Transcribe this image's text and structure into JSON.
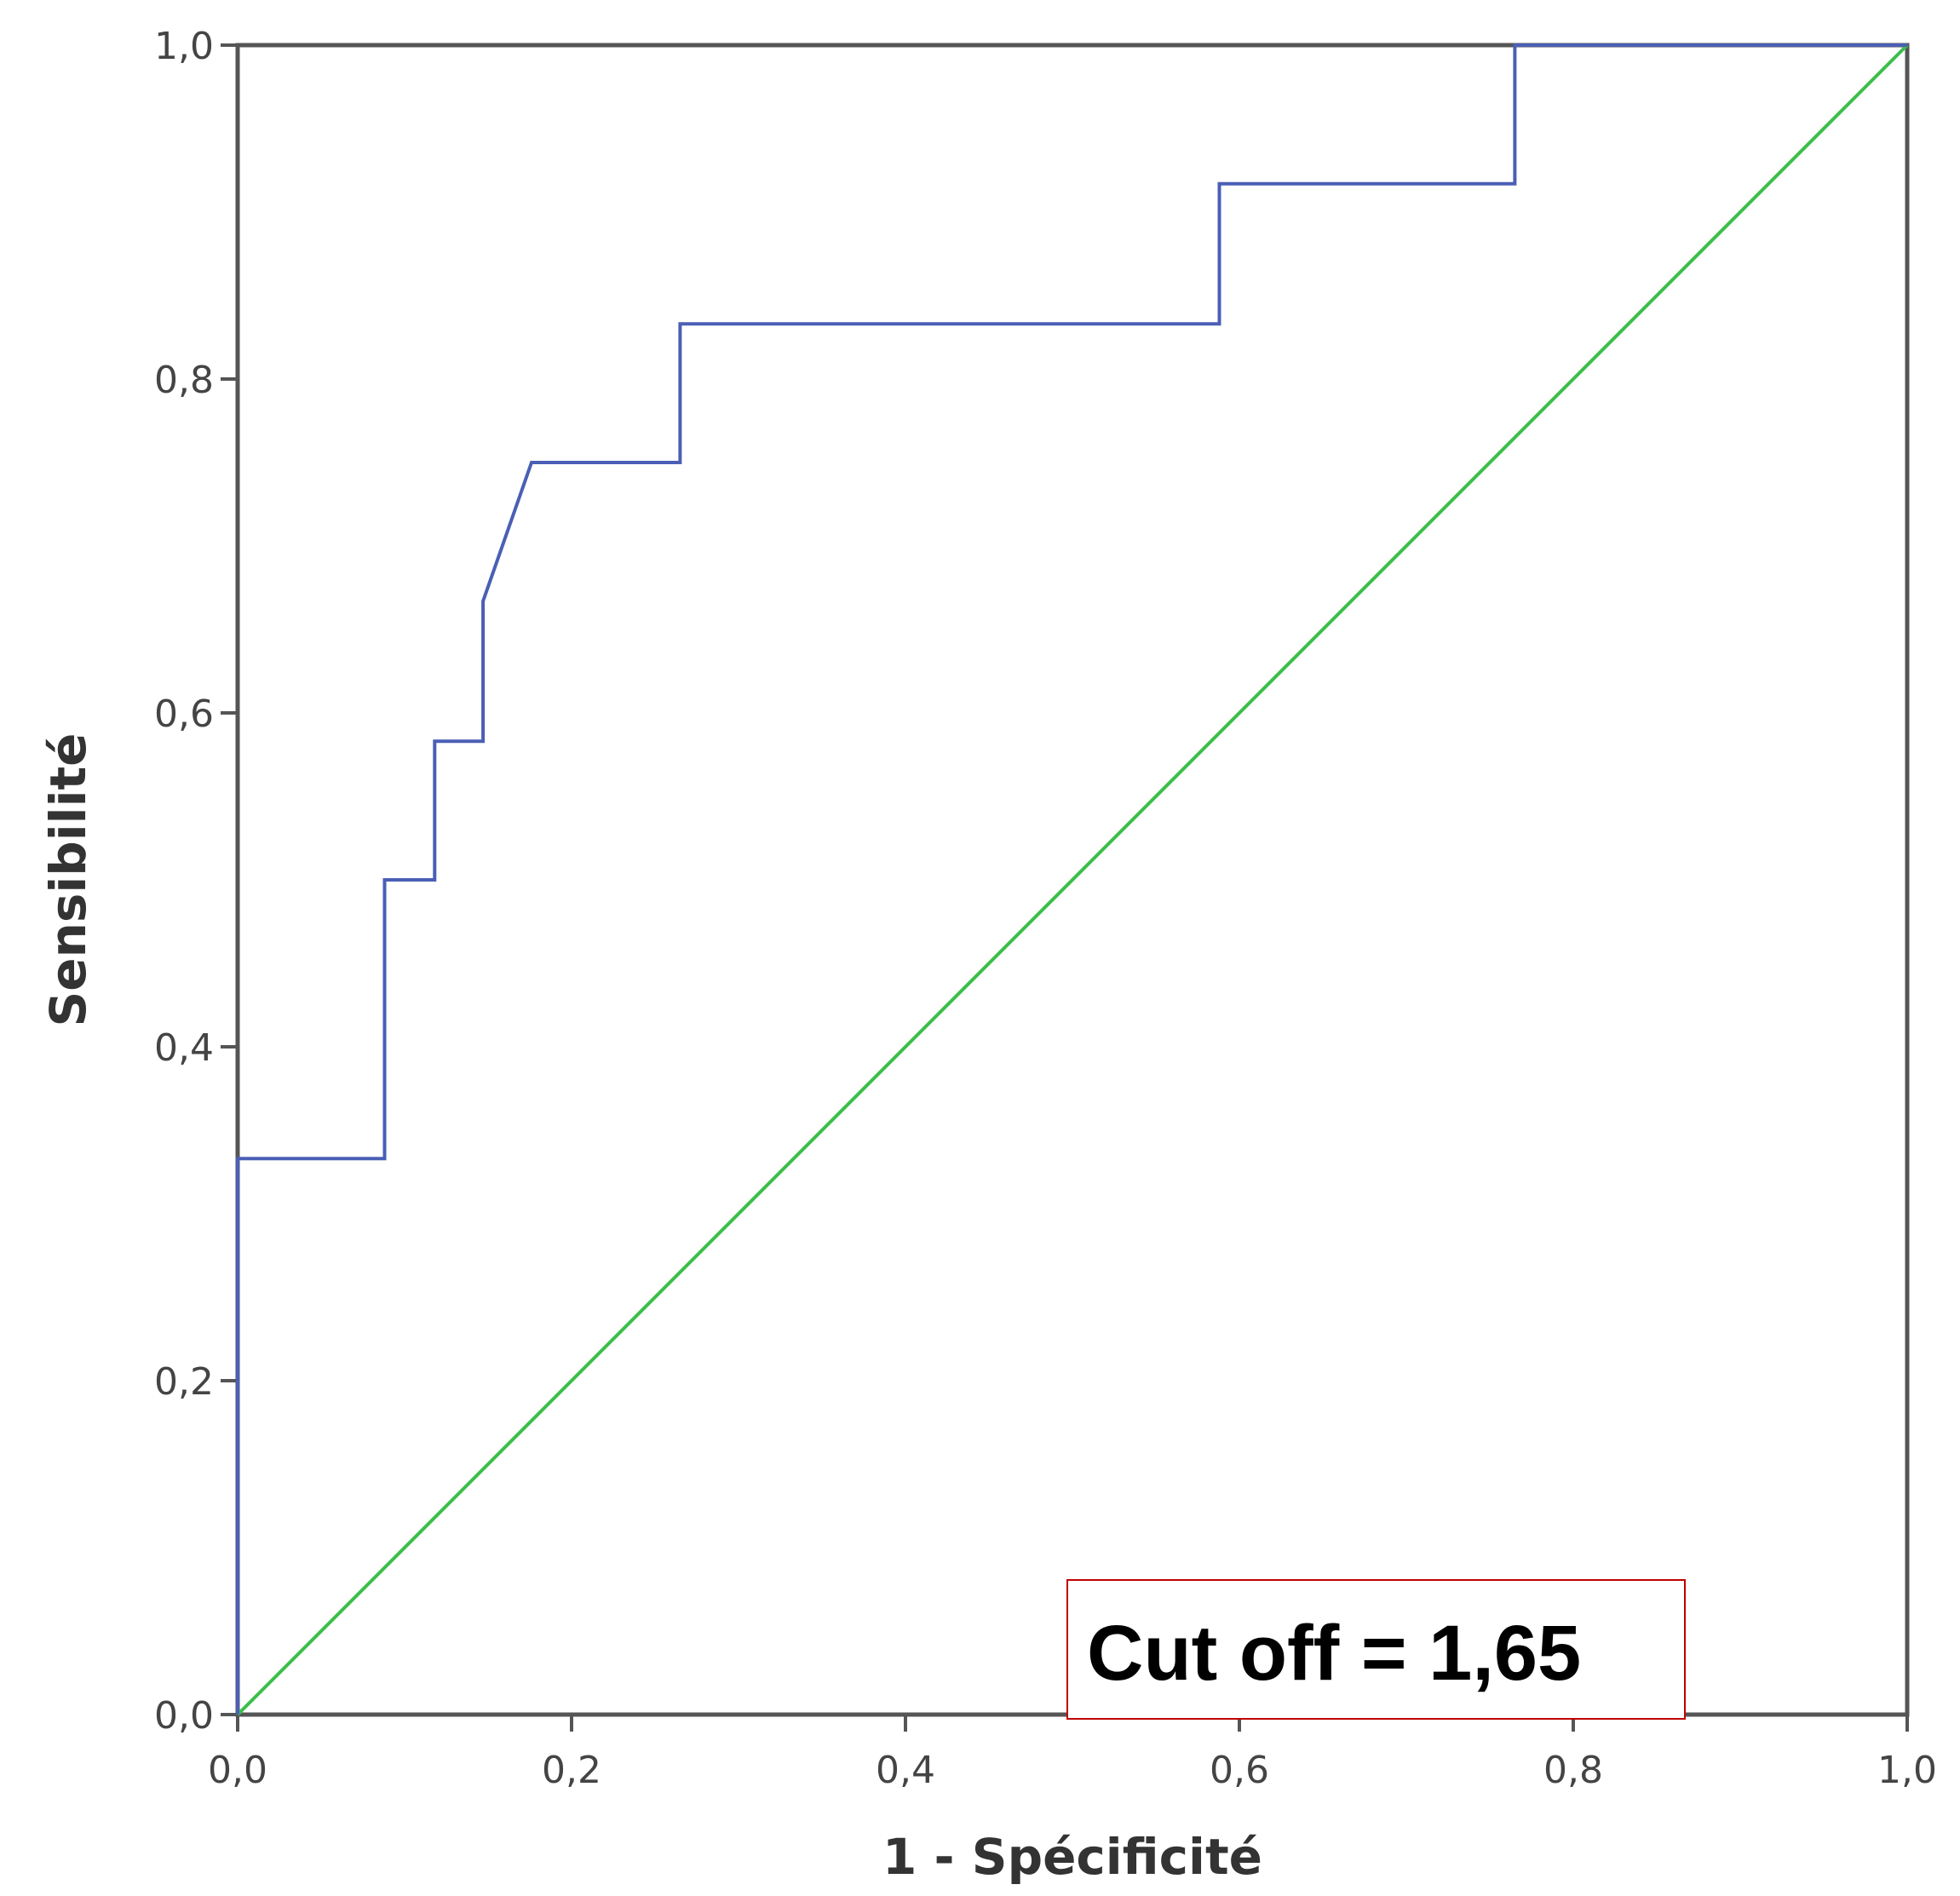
{
  "chart_data": {
    "type": "line",
    "xlabel": "1 - Spécificité",
    "ylabel": "Sensibilité",
    "xlim": [
      0,
      1
    ],
    "ylim": [
      0,
      1
    ],
    "x_ticks": [
      "0,0",
      "0,2",
      "0,4",
      "0,6",
      "0,8",
      "1,0"
    ],
    "y_ticks": [
      "0,0",
      "0,2",
      "0,4",
      "0,6",
      "0,8",
      "1,0"
    ],
    "grid": false,
    "series": [
      {
        "color": "#4a5fb5",
        "style": "step",
        "points": [
          [
            0,
            0
          ],
          [
            0,
            0.333
          ],
          [
            0.088,
            0.333
          ],
          [
            0.088,
            0.5
          ],
          [
            0.118,
            0.5
          ],
          [
            0.118,
            0.583
          ],
          [
            0.147,
            0.583
          ],
          [
            0.147,
            0.667
          ],
          [
            0.176,
            0.75
          ],
          [
            0.265,
            0.75
          ],
          [
            0.265,
            0.833
          ],
          [
            0.588,
            0.833
          ],
          [
            0.588,
            0.917
          ],
          [
            0.765,
            0.917
          ],
          [
            0.765,
            1.0
          ],
          [
            1.0,
            1.0
          ]
        ]
      },
      {
        "color": "#3cbf4a",
        "style": "reference",
        "points": [
          [
            0,
            0
          ],
          [
            1,
            1
          ]
        ]
      }
    ],
    "annotation": {
      "text": "Cut off = 1,65",
      "border_color": "#c00000"
    }
  }
}
